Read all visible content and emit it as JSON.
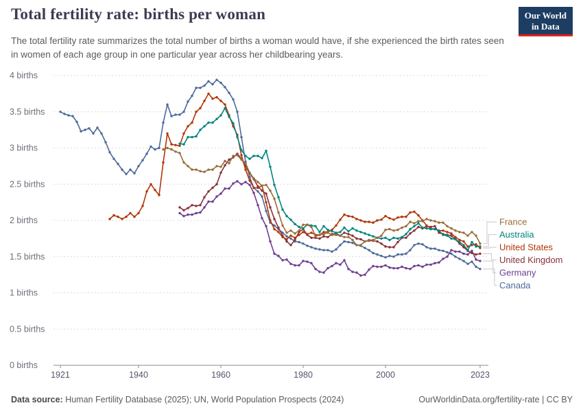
{
  "header": {
    "title": "Total fertility rate: births per woman",
    "subtitle": "The total fertility rate summarizes the total number of births a woman would have, if she experienced the birth rates seen in women of each age group in one particular year across her childbearing years.",
    "logo": {
      "line1": "Our World",
      "line2": "in Data",
      "bg_color": "#1d3d63",
      "accent_color": "#e0231c"
    }
  },
  "chart_data": {
    "type": "line",
    "title": "Total fertility rate: births per woman",
    "xlabel": "",
    "ylabel": "",
    "x_min": 1921,
    "x_max": 2023,
    "y_min": 0,
    "y_max": 4,
    "grid": "horizontal-dashed",
    "legend_position": "right",
    "x_ticks": [
      {
        "value": 1921,
        "label": "1921"
      },
      {
        "value": 1940,
        "label": "1940"
      },
      {
        "value": 1960,
        "label": "1960"
      },
      {
        "value": 1980,
        "label": "1980"
      },
      {
        "value": 2000,
        "label": "2000"
      },
      {
        "value": 2023,
        "label": "2023"
      }
    ],
    "y_ticks": [
      {
        "value": 0,
        "label": "0 births"
      },
      {
        "value": 0.5,
        "label": "0.5 births"
      },
      {
        "value": 1,
        "label": "1 births"
      },
      {
        "value": 1.5,
        "label": "1.5 births"
      },
      {
        "value": 2,
        "label": "2 births"
      },
      {
        "value": 2.5,
        "label": "2.5 births"
      },
      {
        "value": 3,
        "label": "3 births"
      },
      {
        "value": 3.5,
        "label": "3.5 births"
      },
      {
        "value": 4,
        "label": "4 births"
      }
    ],
    "series": [
      {
        "name": "France",
        "color": "#996D39",
        "start_year": 1946,
        "values": [
          2.98,
          3.0,
          2.98,
          2.95,
          2.93,
          2.8,
          2.75,
          2.7,
          2.7,
          2.68,
          2.67,
          2.7,
          2.7,
          2.75,
          2.74,
          2.82,
          2.79,
          2.89,
          2.9,
          2.84,
          2.79,
          2.66,
          2.58,
          2.53,
          2.48,
          2.49,
          2.41,
          2.3,
          2.11,
          1.93,
          1.83,
          1.86,
          1.82,
          1.86,
          1.94,
          1.94,
          1.91,
          1.78,
          1.8,
          1.81,
          1.83,
          1.8,
          1.8,
          1.79,
          1.77,
          1.77,
          1.73,
          1.66,
          1.66,
          1.71,
          1.73,
          1.73,
          1.76,
          1.79,
          1.87,
          1.88,
          1.86,
          1.87,
          1.9,
          1.92,
          1.98,
          1.96,
          1.99,
          1.99,
          2.02,
          2.0,
          1.99,
          1.97,
          1.97,
          1.92,
          1.89,
          1.86,
          1.84,
          1.83,
          1.79,
          1.84,
          1.79,
          1.68
        ]
      },
      {
        "name": "Australia",
        "color": "#00847E",
        "start_year": 1950,
        "values": [
          3.06,
          3.05,
          3.15,
          3.15,
          3.16,
          3.25,
          3.3,
          3.35,
          3.35,
          3.4,
          3.45,
          3.55,
          3.43,
          3.34,
          3.15,
          2.97,
          2.89,
          2.85,
          2.89,
          2.89,
          2.86,
          2.96,
          2.74,
          2.49,
          2.32,
          2.15,
          2.06,
          2.01,
          1.95,
          1.91,
          1.89,
          1.94,
          1.93,
          1.92,
          1.84,
          1.92,
          1.87,
          1.85,
          1.83,
          1.84,
          1.9,
          1.85,
          1.89,
          1.86,
          1.84,
          1.82,
          1.8,
          1.78,
          1.76,
          1.75,
          1.76,
          1.73,
          1.76,
          1.75,
          1.77,
          1.81,
          1.88,
          1.92,
          1.96,
          1.9,
          1.89,
          1.88,
          1.88,
          1.86,
          1.8,
          1.79,
          1.75,
          1.74,
          1.7,
          1.66,
          1.59,
          1.7,
          1.64,
          1.64
        ]
      },
      {
        "name": "United States",
        "color": "#B13507",
        "start_year": 1933,
        "values": [
          2.02,
          2.07,
          2.05,
          2.02,
          2.05,
          2.1,
          2.05,
          2.1,
          2.2,
          2.4,
          2.5,
          2.42,
          2.35,
          2.8,
          3.2,
          3.05,
          3.04,
          3.03,
          3.2,
          3.3,
          3.35,
          3.5,
          3.55,
          3.65,
          3.75,
          3.68,
          3.7,
          3.65,
          3.6,
          3.45,
          3.3,
          3.18,
          2.9,
          2.7,
          2.55,
          2.45,
          2.45,
          2.48,
          2.25,
          2.0,
          1.88,
          1.84,
          1.77,
          1.74,
          1.79,
          1.76,
          1.8,
          1.84,
          1.81,
          1.83,
          1.8,
          1.8,
          1.84,
          1.84,
          1.87,
          1.93,
          2.01,
          2.08,
          2.06,
          2.05,
          2.02,
          2.0,
          1.98,
          1.98,
          1.97,
          2.0,
          2.01,
          2.06,
          2.03,
          2.01,
          2.04,
          2.05,
          2.05,
          2.11,
          2.12,
          2.07,
          2.0,
          1.93,
          1.89,
          1.88,
          1.86,
          1.86,
          1.84,
          1.82,
          1.77,
          1.73,
          1.71,
          1.64,
          1.66,
          1.67,
          1.62
        ]
      },
      {
        "name": "United Kingdom",
        "color": "#883039",
        "start_year": 1950,
        "values": [
          2.18,
          2.14,
          2.17,
          2.21,
          2.2,
          2.21,
          2.32,
          2.4,
          2.45,
          2.5,
          2.66,
          2.76,
          2.84,
          2.87,
          2.92,
          2.85,
          2.75,
          2.65,
          2.57,
          2.47,
          2.41,
          2.37,
          2.18,
          2.02,
          1.9,
          1.79,
          1.71,
          1.66,
          1.73,
          1.84,
          1.88,
          1.8,
          1.76,
          1.76,
          1.75,
          1.78,
          1.77,
          1.81,
          1.82,
          1.79,
          1.83,
          1.81,
          1.79,
          1.75,
          1.74,
          1.71,
          1.72,
          1.72,
          1.71,
          1.68,
          1.64,
          1.63,
          1.63,
          1.7,
          1.76,
          1.76,
          1.82,
          1.86,
          1.91,
          1.89,
          1.92,
          1.91,
          1.92,
          1.83,
          1.81,
          1.8,
          1.79,
          1.74,
          1.68,
          1.63,
          1.58,
          1.55,
          1.53,
          1.54
        ]
      },
      {
        "name": "Germany",
        "color": "#6D3E91",
        "start_year": 1950,
        "values": [
          2.1,
          2.06,
          2.08,
          2.08,
          2.1,
          2.11,
          2.18,
          2.26,
          2.26,
          2.33,
          2.37,
          2.44,
          2.44,
          2.51,
          2.54,
          2.5,
          2.53,
          2.49,
          2.38,
          2.21,
          2.03,
          1.92,
          1.71,
          1.54,
          1.51,
          1.45,
          1.46,
          1.4,
          1.38,
          1.38,
          1.44,
          1.43,
          1.41,
          1.33,
          1.29,
          1.28,
          1.34,
          1.37,
          1.41,
          1.39,
          1.45,
          1.33,
          1.29,
          1.28,
          1.24,
          1.25,
          1.32,
          1.37,
          1.36,
          1.36,
          1.38,
          1.35,
          1.34,
          1.34,
          1.36,
          1.34,
          1.33,
          1.37,
          1.38,
          1.36,
          1.39,
          1.39,
          1.41,
          1.42,
          1.47,
          1.5,
          1.59,
          1.57,
          1.57,
          1.54,
          1.53,
          1.58,
          1.46,
          1.44
        ]
      },
      {
        "name": "Canada",
        "color": "#4C6A9C",
        "start_year": 1921,
        "values": [
          3.5,
          3.47,
          3.45,
          3.44,
          3.36,
          3.23,
          3.25,
          3.27,
          3.2,
          3.28,
          3.2,
          3.08,
          2.94,
          2.85,
          2.78,
          2.7,
          2.64,
          2.7,
          2.65,
          2.75,
          2.83,
          2.92,
          3.02,
          2.98,
          3.0,
          3.35,
          3.6,
          3.44,
          3.46,
          3.46,
          3.5,
          3.64,
          3.72,
          3.83,
          3.83,
          3.86,
          3.92,
          3.88,
          3.94,
          3.9,
          3.84,
          3.76,
          3.67,
          3.5,
          3.15,
          2.81,
          2.6,
          2.45,
          2.4,
          2.33,
          2.13,
          1.97,
          1.93,
          1.88,
          1.83,
          1.78,
          1.75,
          1.71,
          1.7,
          1.68,
          1.65,
          1.63,
          1.61,
          1.6,
          1.59,
          1.59,
          1.57,
          1.6,
          1.66,
          1.71,
          1.7,
          1.69,
          1.66,
          1.65,
          1.62,
          1.59,
          1.55,
          1.53,
          1.51,
          1.49,
          1.51,
          1.5,
          1.53,
          1.53,
          1.54,
          1.59,
          1.66,
          1.68,
          1.67,
          1.63,
          1.61,
          1.61,
          1.59,
          1.58,
          1.56,
          1.54,
          1.5,
          1.47,
          1.44,
          1.4,
          1.43,
          1.36,
          1.33
        ]
      }
    ]
  },
  "footer": {
    "source_label": "Data source:",
    "source_text": " Human Fertility Database (2025); UN, World Population Prospects (2024)",
    "link_text": "OurWorldinData.org/fertility-rate | CC BY"
  }
}
